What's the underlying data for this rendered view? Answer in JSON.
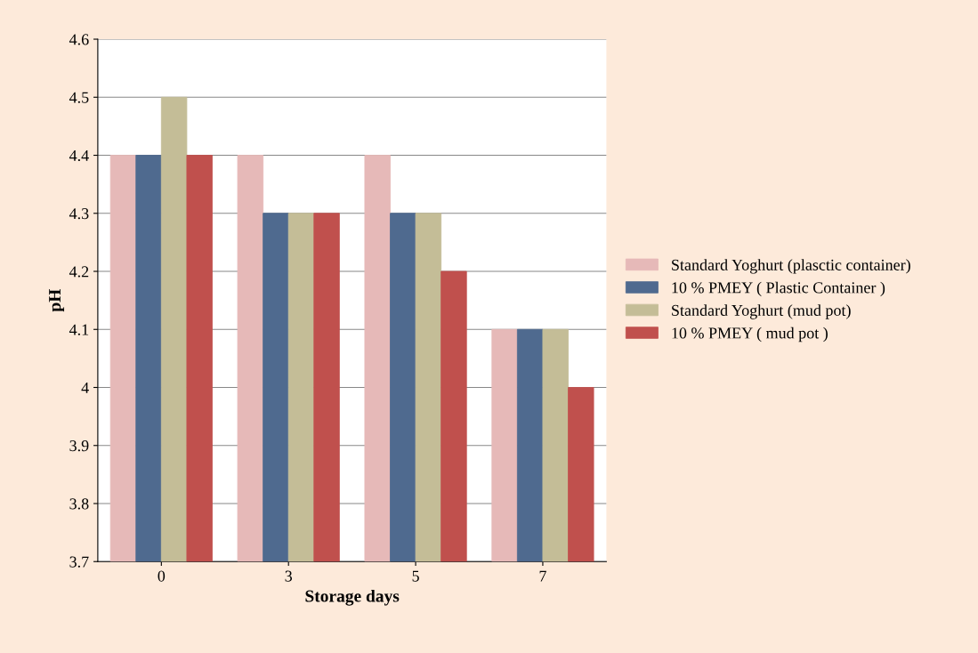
{
  "chart_data": {
    "type": "bar",
    "xlabel": "Storage days",
    "ylabel": "pH",
    "categories": [
      "0",
      "3",
      "5",
      "7"
    ],
    "series": [
      {
        "name": "Standard Yoghurt (plasctic container)",
        "color": "#e6b9b8",
        "values": [
          4.4,
          4.4,
          4.4,
          4.1
        ]
      },
      {
        "name": "10 % PMEY ( Plastic Container )",
        "color": "#4f6a8f",
        "values": [
          4.4,
          4.3,
          4.3,
          4.1
        ]
      },
      {
        "name": "Standard Yoghurt (mud pot)",
        "color": "#c4bd97",
        "values": [
          4.5,
          4.3,
          4.3,
          4.1
        ]
      },
      {
        "name": "10 % PMEY ( mud pot )",
        "color": "#c0504d",
        "values": [
          4.4,
          4.3,
          4.2,
          4.0
        ]
      }
    ],
    "ylim": [
      3.7,
      4.6
    ],
    "yticks": [
      3.7,
      3.8,
      3.9,
      4,
      4.1,
      4.2,
      4.3,
      4.4,
      4.5,
      4.6
    ],
    "grid": "y",
    "legend": "right"
  }
}
